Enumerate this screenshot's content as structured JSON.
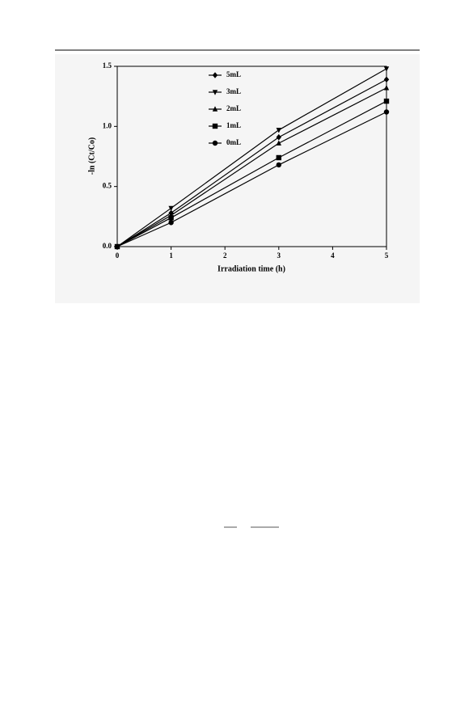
{
  "chart_data": {
    "type": "line",
    "x_label": "Irradiation time (h)",
    "y_label": "-ln (Ct/Co)",
    "x": [
      0,
      1,
      3,
      5
    ],
    "series": [
      {
        "name": "5mL",
        "color": "#000000",
        "marker": "diamond",
        "values": [
          0,
          0.28,
          0.91,
          1.39
        ]
      },
      {
        "name": "3mL",
        "color": "#000000",
        "marker": "triangle-down",
        "values": [
          0,
          0.32,
          0.97,
          1.48
        ]
      },
      {
        "name": "2mL",
        "color": "#000000",
        "marker": "triangle-up",
        "values": [
          0,
          0.26,
          0.86,
          1.32
        ]
      },
      {
        "name": "1mL",
        "color": "#000000",
        "marker": "square",
        "values": [
          0,
          0.24,
          0.74,
          1.21
        ]
      },
      {
        "name": "0mL",
        "color": "#000000",
        "marker": "circle",
        "values": [
          0,
          0.2,
          0.68,
          1.12
        ]
      }
    ],
    "xlim": [
      0,
      5
    ],
    "xticks": [
      0,
      1,
      2,
      3,
      4,
      5
    ],
    "ylim": [
      0,
      1.5
    ],
    "yticks": [
      {
        "value": 0,
        "label": "0.0"
      },
      {
        "value": 0.5,
        "label": "0.5"
      },
      {
        "value": 1,
        "label": "1.0"
      },
      {
        "value": 1.5,
        "label": "1.5"
      }
    ],
    "legend": "top-left"
  }
}
